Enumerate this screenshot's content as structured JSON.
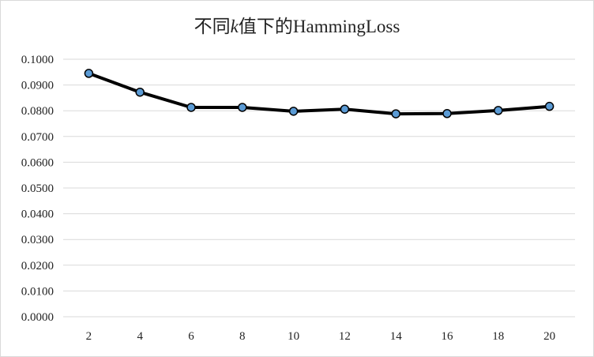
{
  "chart_data": {
    "type": "line",
    "title": {
      "prefix": "不同",
      "italic": "k",
      "suffix": "值下的HammingLoss"
    },
    "xlabel": "",
    "ylabel": "",
    "x": [
      2,
      4,
      6,
      8,
      10,
      12,
      14,
      16,
      18,
      20
    ],
    "series": [
      {
        "values": [
          0.0945,
          0.0872,
          0.0813,
          0.0813,
          0.0798,
          0.0806,
          0.0788,
          0.0789,
          0.0801,
          0.0817
        ]
      }
    ],
    "ylim": [
      0.0,
      0.1
    ],
    "yticks": [
      "0.0000",
      "0.0100",
      "0.0200",
      "0.0300",
      "0.0400",
      "0.0500",
      "0.0600",
      "0.0700",
      "0.0800",
      "0.0900",
      "0.1000"
    ],
    "xticks": [
      "2",
      "4",
      "6",
      "8",
      "10",
      "12",
      "14",
      "16",
      "18",
      "20"
    ],
    "grid": true,
    "legend": "none",
    "colors": {
      "line": "#000000",
      "marker_fill": "#5b9bd5",
      "marker_edge": "#000000",
      "grid": "#d9d9d9"
    }
  }
}
